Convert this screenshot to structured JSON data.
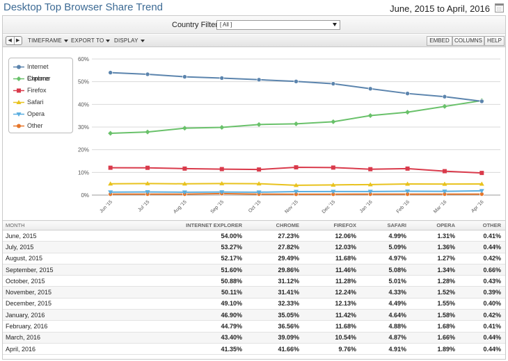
{
  "header": {
    "title": "Desktop Top Browser Share Trend",
    "date_range": "June, 2015 to April, 2016"
  },
  "filter": {
    "label": "Country Filter:",
    "value": "[ All ]"
  },
  "toolbar": {
    "prev": "◀",
    "next": "▶",
    "timeframe": "TIMEFRAME",
    "export": "EXPORT TO",
    "display": "DISPLAY",
    "embed": "EMBED",
    "columns": "COLUMNS",
    "help": "HELP"
  },
  "chart_data": {
    "type": "line",
    "categories": [
      "Jun '15",
      "Jul '15",
      "Aug '15",
      "Sep '15",
      "Oct '15",
      "Nov '15",
      "Dec '15",
      "Jan '16",
      "Feb '16",
      "Mar '16",
      "Apr '16"
    ],
    "y_ticks": [
      "0%",
      "10%",
      "20%",
      "30%",
      "40%",
      "50%",
      "60%"
    ],
    "ylim": [
      0,
      60
    ],
    "grid": true,
    "legend_position": "top-left",
    "series": [
      {
        "name": "Internet Explorer",
        "color": "#5b84ad",
        "marker": "circle",
        "values": [
          54.0,
          53.27,
          52.17,
          51.6,
          50.88,
          50.11,
          49.1,
          46.9,
          44.79,
          43.4,
          41.35
        ]
      },
      {
        "name": "Chrome",
        "color": "#69c16a",
        "marker": "diamond",
        "values": [
          27.23,
          27.82,
          29.49,
          29.86,
          31.12,
          31.41,
          32.33,
          35.05,
          36.56,
          39.09,
          41.66
        ]
      },
      {
        "name": "Firefox",
        "color": "#d93a4b",
        "marker": "square",
        "values": [
          12.06,
          12.03,
          11.68,
          11.46,
          11.28,
          12.24,
          12.13,
          11.42,
          11.68,
          10.54,
          9.76
        ]
      },
      {
        "name": "Safari",
        "color": "#e8c21d",
        "marker": "triangle-up",
        "values": [
          4.99,
          5.09,
          4.97,
          5.08,
          5.01,
          4.33,
          4.49,
          4.64,
          4.88,
          4.87,
          4.91
        ]
      },
      {
        "name": "Opera",
        "color": "#5aaee0",
        "marker": "triangle-down",
        "values": [
          1.31,
          1.36,
          1.27,
          1.34,
          1.28,
          1.52,
          1.55,
          1.58,
          1.68,
          1.66,
          1.89
        ]
      },
      {
        "name": "Other",
        "color": "#e6762a",
        "marker": "circle",
        "values": [
          0.41,
          0.44,
          0.42,
          0.66,
          0.43,
          0.39,
          0.4,
          0.42,
          0.41,
          0.44,
          0.44
        ]
      }
    ]
  },
  "table": {
    "headers": [
      "MONTH",
      "INTERNET EXPLORER",
      "CHROME",
      "FIREFOX",
      "SAFARI",
      "OPERA",
      "OTHER"
    ],
    "rows": [
      [
        "June, 2015",
        "54.00%",
        "27.23%",
        "12.06%",
        "4.99%",
        "1.31%",
        "0.41%"
      ],
      [
        "July, 2015",
        "53.27%",
        "27.82%",
        "12.03%",
        "5.09%",
        "1.36%",
        "0.44%"
      ],
      [
        "August, 2015",
        "52.17%",
        "29.49%",
        "11.68%",
        "4.97%",
        "1.27%",
        "0.42%"
      ],
      [
        "September, 2015",
        "51.60%",
        "29.86%",
        "11.46%",
        "5.08%",
        "1.34%",
        "0.66%"
      ],
      [
        "October, 2015",
        "50.88%",
        "31.12%",
        "11.28%",
        "5.01%",
        "1.28%",
        "0.43%"
      ],
      [
        "November, 2015",
        "50.11%",
        "31.41%",
        "12.24%",
        "4.33%",
        "1.52%",
        "0.39%"
      ],
      [
        "December, 2015",
        "49.10%",
        "32.33%",
        "12.13%",
        "4.49%",
        "1.55%",
        "0.40%"
      ],
      [
        "January, 2016",
        "46.90%",
        "35.05%",
        "11.42%",
        "4.64%",
        "1.58%",
        "0.42%"
      ],
      [
        "February, 2016",
        "44.79%",
        "36.56%",
        "11.68%",
        "4.88%",
        "1.68%",
        "0.41%"
      ],
      [
        "March, 2016",
        "43.40%",
        "39.09%",
        "10.54%",
        "4.87%",
        "1.66%",
        "0.44%"
      ],
      [
        "April, 2016",
        "41.35%",
        "41.66%",
        "9.76%",
        "4.91%",
        "1.89%",
        "0.44%"
      ]
    ]
  }
}
